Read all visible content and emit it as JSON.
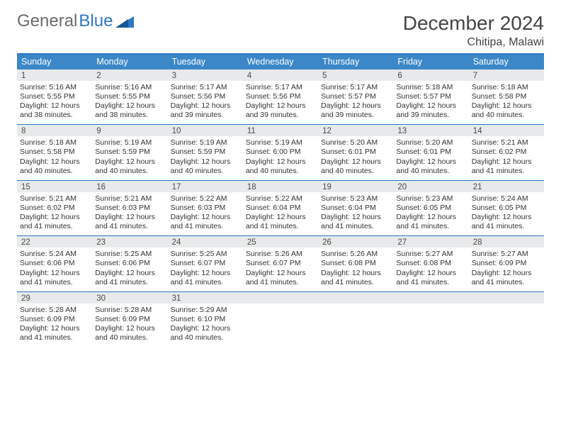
{
  "brand": {
    "part1": "General",
    "part2": "Blue"
  },
  "title": "December 2024",
  "location": "Chitipa, Malawi",
  "colors": {
    "header_bg": "#3b87c8",
    "rule": "#2f78c2",
    "daynum_bg": "#e8e9ea",
    "text": "#333333"
  },
  "weekdays": [
    "Sunday",
    "Monday",
    "Tuesday",
    "Wednesday",
    "Thursday",
    "Friday",
    "Saturday"
  ],
  "weeks": [
    [
      {
        "n": "1",
        "sunrise": "5:16 AM",
        "sunset": "5:55 PM",
        "daylight": "12 hours and 38 minutes."
      },
      {
        "n": "2",
        "sunrise": "5:16 AM",
        "sunset": "5:55 PM",
        "daylight": "12 hours and 38 minutes."
      },
      {
        "n": "3",
        "sunrise": "5:17 AM",
        "sunset": "5:56 PM",
        "daylight": "12 hours and 39 minutes."
      },
      {
        "n": "4",
        "sunrise": "5:17 AM",
        "sunset": "5:56 PM",
        "daylight": "12 hours and 39 minutes."
      },
      {
        "n": "5",
        "sunrise": "5:17 AM",
        "sunset": "5:57 PM",
        "daylight": "12 hours and 39 minutes."
      },
      {
        "n": "6",
        "sunrise": "5:18 AM",
        "sunset": "5:57 PM",
        "daylight": "12 hours and 39 minutes."
      },
      {
        "n": "7",
        "sunrise": "5:18 AM",
        "sunset": "5:58 PM",
        "daylight": "12 hours and 40 minutes."
      }
    ],
    [
      {
        "n": "8",
        "sunrise": "5:18 AM",
        "sunset": "5:58 PM",
        "daylight": "12 hours and 40 minutes."
      },
      {
        "n": "9",
        "sunrise": "5:19 AM",
        "sunset": "5:59 PM",
        "daylight": "12 hours and 40 minutes."
      },
      {
        "n": "10",
        "sunrise": "5:19 AM",
        "sunset": "5:59 PM",
        "daylight": "12 hours and 40 minutes."
      },
      {
        "n": "11",
        "sunrise": "5:19 AM",
        "sunset": "6:00 PM",
        "daylight": "12 hours and 40 minutes."
      },
      {
        "n": "12",
        "sunrise": "5:20 AM",
        "sunset": "6:01 PM",
        "daylight": "12 hours and 40 minutes."
      },
      {
        "n": "13",
        "sunrise": "5:20 AM",
        "sunset": "6:01 PM",
        "daylight": "12 hours and 40 minutes."
      },
      {
        "n": "14",
        "sunrise": "5:21 AM",
        "sunset": "6:02 PM",
        "daylight": "12 hours and 41 minutes."
      }
    ],
    [
      {
        "n": "15",
        "sunrise": "5:21 AM",
        "sunset": "6:02 PM",
        "daylight": "12 hours and 41 minutes."
      },
      {
        "n": "16",
        "sunrise": "5:21 AM",
        "sunset": "6:03 PM",
        "daylight": "12 hours and 41 minutes."
      },
      {
        "n": "17",
        "sunrise": "5:22 AM",
        "sunset": "6:03 PM",
        "daylight": "12 hours and 41 minutes."
      },
      {
        "n": "18",
        "sunrise": "5:22 AM",
        "sunset": "6:04 PM",
        "daylight": "12 hours and 41 minutes."
      },
      {
        "n": "19",
        "sunrise": "5:23 AM",
        "sunset": "6:04 PM",
        "daylight": "12 hours and 41 minutes."
      },
      {
        "n": "20",
        "sunrise": "5:23 AM",
        "sunset": "6:05 PM",
        "daylight": "12 hours and 41 minutes."
      },
      {
        "n": "21",
        "sunrise": "5:24 AM",
        "sunset": "6:05 PM",
        "daylight": "12 hours and 41 minutes."
      }
    ],
    [
      {
        "n": "22",
        "sunrise": "5:24 AM",
        "sunset": "6:06 PM",
        "daylight": "12 hours and 41 minutes."
      },
      {
        "n": "23",
        "sunrise": "5:25 AM",
        "sunset": "6:06 PM",
        "daylight": "12 hours and 41 minutes."
      },
      {
        "n": "24",
        "sunrise": "5:25 AM",
        "sunset": "6:07 PM",
        "daylight": "12 hours and 41 minutes."
      },
      {
        "n": "25",
        "sunrise": "5:26 AM",
        "sunset": "6:07 PM",
        "daylight": "12 hours and 41 minutes."
      },
      {
        "n": "26",
        "sunrise": "5:26 AM",
        "sunset": "6:08 PM",
        "daylight": "12 hours and 41 minutes."
      },
      {
        "n": "27",
        "sunrise": "5:27 AM",
        "sunset": "6:08 PM",
        "daylight": "12 hours and 41 minutes."
      },
      {
        "n": "28",
        "sunrise": "5:27 AM",
        "sunset": "6:09 PM",
        "daylight": "12 hours and 41 minutes."
      }
    ],
    [
      {
        "n": "29",
        "sunrise": "5:28 AM",
        "sunset": "6:09 PM",
        "daylight": "12 hours and 41 minutes."
      },
      {
        "n": "30",
        "sunrise": "5:28 AM",
        "sunset": "6:09 PM",
        "daylight": "12 hours and 40 minutes."
      },
      {
        "n": "31",
        "sunrise": "5:29 AM",
        "sunset": "6:10 PM",
        "daylight": "12 hours and 40 minutes."
      },
      null,
      null,
      null,
      null
    ]
  ],
  "labels": {
    "sunrise": "Sunrise: ",
    "sunset": "Sunset: ",
    "daylight": "Daylight: "
  }
}
